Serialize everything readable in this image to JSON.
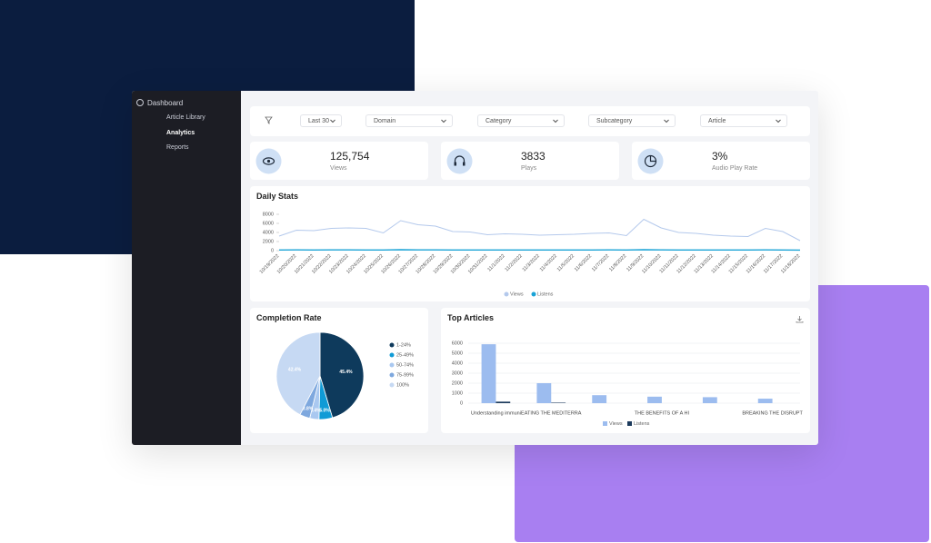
{
  "sidebar": {
    "title": "Dashboard",
    "items": [
      "Article Library",
      "Analytics",
      "Reports"
    ]
  },
  "filters": [
    "Last 30",
    "Domain",
    "Category",
    "Subcategory",
    "Article"
  ],
  "stats": [
    {
      "value": "125,754",
      "label": "Views"
    },
    {
      "value": "3833",
      "label": "Plays"
    },
    {
      "value": "3%",
      "label": "Audio Play Rate"
    }
  ],
  "chart_data": [
    {
      "type": "line",
      "title": "Daily Stats",
      "categories": [
        "10/19/2022",
        "10/20/2022",
        "10/21/2022",
        "10/22/2022",
        "10/23/2022",
        "10/24/2022",
        "10/25/2022",
        "10/26/2022",
        "10/27/2022",
        "10/28/2022",
        "10/29/2022",
        "10/30/2022",
        "10/31/2022",
        "11/1/2022",
        "11/2/2022",
        "11/3/2022",
        "11/4/2022",
        "11/5/2022",
        "11/6/2022",
        "11/7/2022",
        "11/8/2022",
        "11/9/2022",
        "11/10/2022",
        "11/11/2022",
        "11/12/2022",
        "11/13/2022",
        "11/14/2022",
        "11/15/2022",
        "11/16/2022",
        "11/17/2022",
        "11/18/2022"
      ],
      "series": [
        {
          "name": "Views",
          "color": "#b4c9ec",
          "values": [
            3200,
            4500,
            4400,
            4900,
            5000,
            4900,
            3900,
            6600,
            5700,
            5400,
            4200,
            4100,
            3500,
            3700,
            3600,
            3400,
            3500,
            3600,
            3800,
            3900,
            3300,
            6900,
            5000,
            4000,
            3800,
            3400,
            3200,
            3100,
            4900,
            4200,
            2200
          ]
        },
        {
          "name": "Listens",
          "color": "#1aa3d6",
          "values": [
            150,
            160,
            150,
            170,
            160,
            150,
            140,
            190,
            170,
            160,
            150,
            150,
            140,
            150,
            140,
            140,
            150,
            150,
            150,
            160,
            140,
            200,
            160,
            150,
            150,
            140,
            140,
            140,
            160,
            150,
            120
          ]
        }
      ],
      "ylim": [
        0,
        8000
      ],
      "yticks": [
        0,
        2000,
        4000,
        6000,
        8000
      ],
      "grid": false
    },
    {
      "type": "pie",
      "title": "Completion Rate",
      "categories": [
        "1-24%",
        "25-49%",
        "50-74%",
        "75-99%",
        "100%"
      ],
      "values": [
        45.4,
        5.0,
        3.4,
        3.8,
        42.4
      ],
      "value_labels": [
        "45.4%",
        "5.0%",
        "3.4%",
        "3.8%",
        "42.4%"
      ],
      "colors": [
        "#0e3a5c",
        "#109bd6",
        "#a9c8f0",
        "#7ea8de",
        "#c6d9f3"
      ]
    },
    {
      "type": "bar",
      "title": "Top Articles",
      "categories": [
        "Understanding immuni",
        "EATING THE MEDITERRA",
        null,
        "THE BENEFITS OF A HI",
        null,
        "BREAKING THE DISRUPT"
      ],
      "series": [
        {
          "name": "Views",
          "color": "#9cbcef",
          "values": [
            5900,
            2000,
            800,
            650,
            600,
            450
          ]
        },
        {
          "name": "Listens",
          "color": "#1c3a5c",
          "values": [
            150,
            50,
            0,
            0,
            0,
            0
          ]
        }
      ],
      "ylim": [
        0,
        6000
      ],
      "yticks": [
        0,
        1000,
        2000,
        3000,
        4000,
        5000,
        6000
      ],
      "grid": true
    }
  ]
}
